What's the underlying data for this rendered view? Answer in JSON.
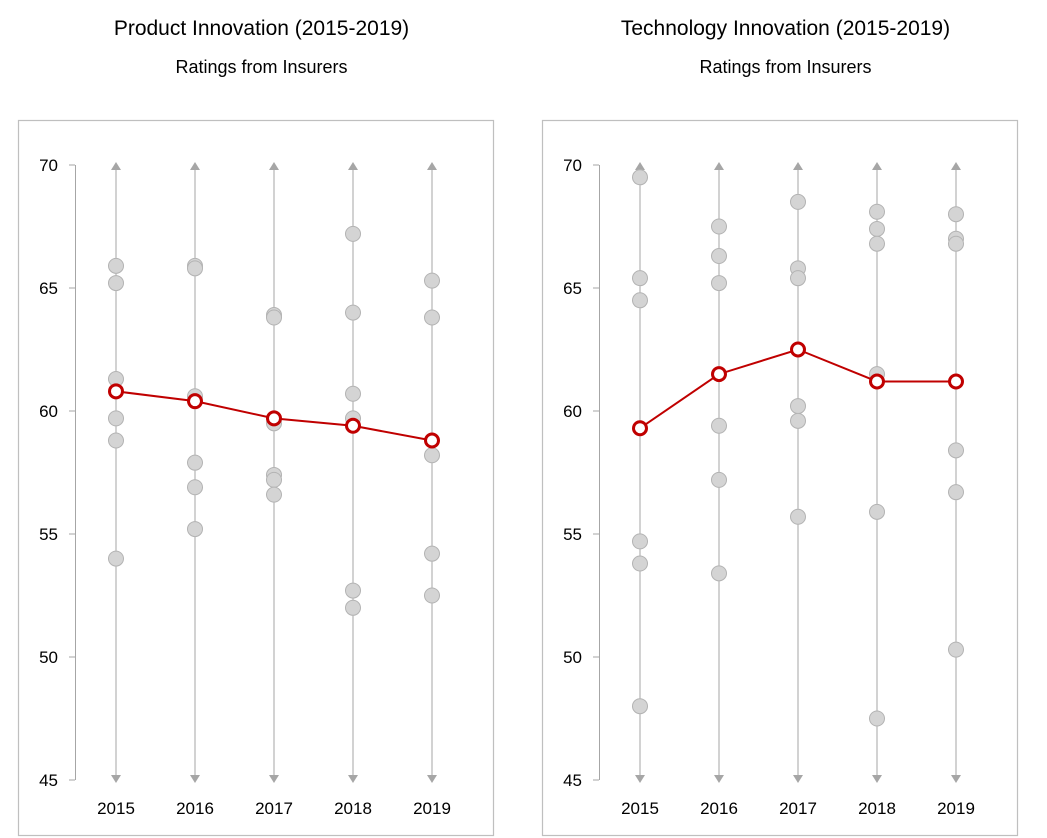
{
  "chart_data": [
    {
      "type": "scatter",
      "title": "Product Innovation (2015-2019)",
      "subtitle": "Ratings from Insurers",
      "categories": [
        "2015",
        "2016",
        "2017",
        "2018",
        "2019"
      ],
      "ylim": [
        45,
        70
      ],
      "yticks": [
        45,
        50,
        55,
        60,
        65,
        70
      ],
      "grid": false,
      "points": [
        [
          65.9,
          65.2,
          61.3,
          59.7,
          58.8,
          54.0
        ],
        [
          65.9,
          65.8,
          60.6,
          57.9,
          56.9,
          55.2
        ],
        [
          63.9,
          63.8,
          59.5,
          57.4,
          57.2,
          56.6
        ],
        [
          67.2,
          64.0,
          60.7,
          59.7,
          52.7,
          52.0
        ],
        [
          65.3,
          63.8,
          58.2,
          54.2,
          52.5
        ]
      ],
      "average": [
        60.8,
        60.4,
        59.7,
        59.4,
        58.8
      ],
      "colors": {
        "points": "#d4d4d4",
        "points_stroke": "#b3b3b3",
        "line": "#c00000",
        "axis": "#a6a6a6"
      }
    },
    {
      "type": "scatter",
      "title": "Technology Innovation (2015-2019)",
      "subtitle": "Ratings from Insurers",
      "categories": [
        "2015",
        "2016",
        "2017",
        "2018",
        "2019"
      ],
      "ylim": [
        45,
        70
      ],
      "yticks": [
        45,
        50,
        55,
        60,
        65,
        70
      ],
      "grid": false,
      "points": [
        [
          69.5,
          65.4,
          64.5,
          54.7,
          53.8,
          48.0
        ],
        [
          67.5,
          66.3,
          65.2,
          59.4,
          57.2,
          53.4
        ],
        [
          68.5,
          65.8,
          65.4,
          60.2,
          59.6,
          55.7
        ],
        [
          68.1,
          67.4,
          66.8,
          61.5,
          55.9,
          47.5
        ],
        [
          68.0,
          67.0,
          66.8,
          58.4,
          56.7,
          50.3
        ]
      ],
      "average": [
        59.3,
        61.5,
        62.5,
        61.2,
        61.2
      ],
      "colors": {
        "points": "#d4d4d4",
        "points_stroke": "#b3b3b3",
        "line": "#c00000",
        "axis": "#a6a6a6"
      }
    }
  ]
}
